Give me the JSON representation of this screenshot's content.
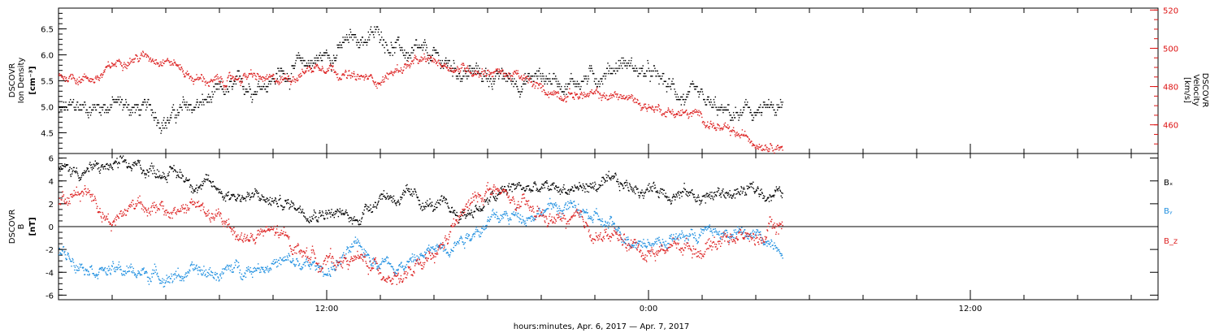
{
  "chart_data": [
    {
      "type": "scatter",
      "panel": "top",
      "ylabel_left": [
        "DSCOVR",
        "Ion Density",
        "[cm⁻³]"
      ],
      "ylabel_right": [
        "DSCOVR",
        "Velocity",
        "[km/s]"
      ],
      "y_left_ticks": [
        "6.5",
        "6.0",
        "5.5",
        "5.0",
        "4.5"
      ],
      "y_right_ticks": [
        "520",
        "500",
        "480",
        "460"
      ],
      "y_left_range": [
        4.1,
        6.9
      ],
      "y_right_range": [
        445,
        521
      ],
      "x_range_hours": [
        0,
        41
      ],
      "series": [
        {
          "name": "",
          "color": "#000000",
          "axis": "left",
          "key_points": [
            [
              0,
              4.9
            ],
            [
              2,
              5.1
            ],
            [
              4,
              4.8
            ],
            [
              6,
              5.2
            ],
            [
              8,
              5.6
            ],
            [
              10,
              6.0
            ],
            [
              11,
              6.3
            ],
            [
              12,
              6.4
            ],
            [
              13,
              6.0
            ],
            [
              14,
              5.9
            ],
            [
              15,
              5.7
            ],
            [
              16,
              5.6
            ],
            [
              17,
              5.5
            ],
            [
              18,
              5.6
            ],
            [
              19,
              5.5
            ],
            [
              20,
              5.6
            ],
            [
              21,
              5.9
            ],
            [
              22,
              5.6
            ],
            [
              23,
              5.3
            ],
            [
              24,
              5.0
            ],
            [
              25,
              4.8
            ],
            [
              26,
              4.9
            ],
            [
              27,
              4.9
            ]
          ],
          "spread": 0.25
        },
        {
          "name": "",
          "color": "#dd2222",
          "axis": "right",
          "key_points": [
            [
              0,
              486
            ],
            [
              1.5,
              485
            ],
            [
              2.5,
              496
            ],
            [
              4,
              496
            ],
            [
              5,
              485
            ],
            [
              6,
              482
            ],
            [
              7,
              486
            ],
            [
              8,
              482
            ],
            [
              9,
              488
            ],
            [
              10,
              493
            ],
            [
              11,
              484
            ],
            [
              12,
              484
            ],
            [
              13,
              492
            ],
            [
              14,
              493
            ],
            [
              15,
              490
            ],
            [
              16,
              489
            ],
            [
              17,
              486
            ],
            [
              18,
              478
            ],
            [
              19,
              477
            ],
            [
              20,
              475
            ],
            [
              21,
              475
            ],
            [
              22,
              470
            ],
            [
              23,
              467
            ],
            [
              24,
              464
            ],
            [
              25,
              455
            ],
            [
              26,
              452
            ],
            [
              27,
              451
            ]
          ],
          "spread": 4.0
        }
      ]
    },
    {
      "type": "scatter",
      "panel": "bottom",
      "ylabel_left": [
        "DSCOVR",
        "B",
        "[nT]"
      ],
      "y_ticks": [
        "6",
        "4",
        "2",
        "0",
        "-2",
        "-4",
        "-6"
      ],
      "y_range": [
        -6.4,
        6.4
      ],
      "zero_line": true,
      "x_range_hours": [
        0,
        41
      ],
      "legend": [
        "Bₓ",
        "Bᵧ",
        "B_z"
      ],
      "series": [
        {
          "name": "Bₓ",
          "color": "#000000",
          "key_points": [
            [
              0,
              4.8
            ],
            [
              2,
              5.2
            ],
            [
              4,
              5.0
            ],
            [
              6,
              3.2
            ],
            [
              8,
              2.2
            ],
            [
              10,
              1.5
            ],
            [
              11,
              0.5
            ],
            [
              12,
              3.0
            ],
            [
              13,
              2.5
            ],
            [
              14,
              1.8
            ],
            [
              15,
              1.0
            ],
            [
              16,
              2.2
            ],
            [
              17,
              3.5
            ],
            [
              18,
              3.2
            ],
            [
              19,
              3.4
            ],
            [
              20,
              3.6
            ],
            [
              21,
              3.5
            ],
            [
              22,
              3.4
            ],
            [
              23,
              3.2
            ],
            [
              24,
              2.6
            ],
            [
              25,
              3.0
            ],
            [
              26,
              3.1
            ],
            [
              27,
              3.0
            ]
          ],
          "spread": 0.9
        },
        {
          "name": "Bᵧ",
          "color": "#1f8fe0",
          "key_points": [
            [
              0,
              -2.2
            ],
            [
              2,
              -3.8
            ],
            [
              4,
              -4.2
            ],
            [
              6,
              -4.0
            ],
            [
              8,
              -3.0
            ],
            [
              10,
              -3.8
            ],
            [
              11,
              -2.0
            ],
            [
              12,
              -2.8
            ],
            [
              13,
              -3.2
            ],
            [
              14,
              -2.0
            ],
            [
              15,
              -0.8
            ],
            [
              16,
              0.5
            ],
            [
              17,
              1.0
            ],
            [
              18,
              1.6
            ],
            [
              19,
              1.8
            ],
            [
              20,
              0.6
            ],
            [
              21,
              -0.6
            ],
            [
              22,
              -1.2
            ],
            [
              23,
              -1.0
            ],
            [
              24,
              -0.4
            ],
            [
              25,
              -0.6
            ],
            [
              26,
              -0.9
            ],
            [
              27,
              -1.5
            ]
          ],
          "spread": 0.9
        },
        {
          "name": "B_z",
          "color": "#dd2222",
          "key_points": [
            [
              0,
              2.0
            ],
            [
              1,
              3.5
            ],
            [
              2,
              0.5
            ],
            [
              3,
              2.5
            ],
            [
              4,
              1.0
            ],
            [
              5,
              2.0
            ],
            [
              6,
              0.5
            ],
            [
              7,
              -1.0
            ],
            [
              8,
              -0.5
            ],
            [
              9,
              -2.0
            ],
            [
              10,
              -3.0
            ],
            [
              11,
              -2.8
            ],
            [
              12,
              -3.8
            ],
            [
              13,
              -4.3
            ],
            [
              14,
              -3.0
            ],
            [
              15,
              1.0
            ],
            [
              16,
              3.5
            ],
            [
              17,
              2.0
            ],
            [
              18,
              0.8
            ],
            [
              19,
              0.5
            ],
            [
              20,
              -0.5
            ],
            [
              21,
              -1.2
            ],
            [
              22,
              -2.2
            ],
            [
              23,
              -1.5
            ],
            [
              24,
              -1.8
            ],
            [
              25,
              -0.6
            ],
            [
              26,
              -1.0
            ],
            [
              27,
              0.2
            ]
          ],
          "spread": 1.0
        }
      ]
    }
  ],
  "x_axis": {
    "tick_labels": [
      {
        "hour": 10,
        "label": "12:00"
      },
      {
        "hour": 22,
        "label": "0:00"
      },
      {
        "hour": 34,
        "label": "12:00"
      }
    ],
    "xlabel": "hours:minutes, Apr.  6, 2017 — Apr.  7, 2017"
  }
}
